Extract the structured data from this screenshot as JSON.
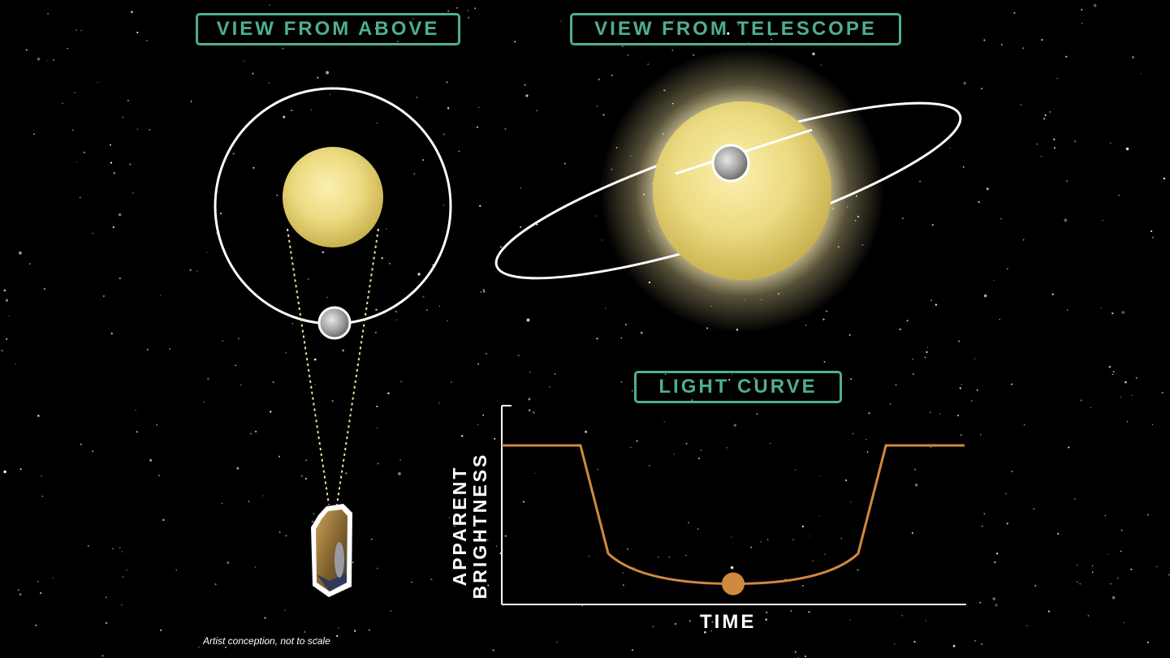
{
  "panels": {
    "above_title": "VIEW FROM ABOVE",
    "telescope_title": "VIEW FROM TELESCOPE",
    "curve_title": "LIGHT CURVE"
  },
  "caption": "Artist conception, not to scale",
  "colors": {
    "background": "#000000",
    "label_accent": "#4fae8e",
    "curve": "#d08a3f",
    "star": "#efdf86",
    "orbit": "#ffffff"
  },
  "chart_data": {
    "type": "line",
    "title": "LIGHT CURVE",
    "xlabel": "TIME",
    "ylabel": "APPARENT BRIGHTNESS",
    "grid": false,
    "x": [
      0,
      0.17,
      0.23,
      0.5,
      0.77,
      0.83,
      1.0
    ],
    "y": [
      1.0,
      1.0,
      0.32,
      0.13,
      0.32,
      1.0,
      1.0
    ],
    "marker": {
      "x": 0.5,
      "y": 0.13
    },
    "xlim": [
      0,
      1
    ],
    "ylim": [
      0,
      1.25
    ]
  }
}
